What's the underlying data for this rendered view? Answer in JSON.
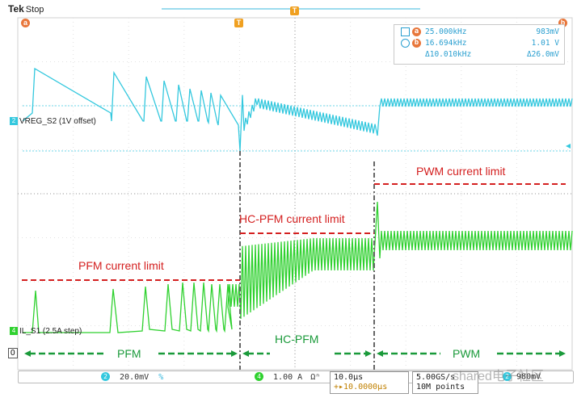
{
  "header": {
    "brand": "Tek",
    "state": "Stop",
    "cursor_a": "a",
    "cursor_b": "b",
    "trigger_marker": "T"
  },
  "readout": {
    "row_a": {
      "badge": "a",
      "freq": "25.000kHz",
      "volt": "983mV"
    },
    "row_b": {
      "badge": "b",
      "freq": "16.694kHz",
      "volt": "1.01 V"
    },
    "row_delta": {
      "freq": "Δ10.010kHz",
      "volt": "Δ26.0mV"
    }
  },
  "channels": {
    "ch2": {
      "number": "2",
      "label": "VREG_S2 (1V offset)",
      "color": "#3ccce0"
    },
    "ch4": {
      "number": "4",
      "label": "IL_S1 (2.5A step)",
      "color": "#3ad63a"
    },
    "zero_marker": "0"
  },
  "annotations": {
    "pfm_limit": "PFM current limit",
    "hcpfm_limit": "HC-PFM current limit",
    "pwm_limit": "PWM current limit",
    "pfm_region": "PFM",
    "hcpfm_region": "HC-PFM",
    "pwm_region": "PWM",
    "red_color": "#d42020",
    "green_color": "#1a9a3a"
  },
  "bottom": {
    "ch2_scale": "20.0mV",
    "ch2_unit_marker": "%",
    "ch4_scale": "1.00 A",
    "ch4_unit_marker": "Ωⁿ",
    "timebase": "10.0µs",
    "trigger_pos": "+▸10.0000µs",
    "sample_rate": "5.00GS/s",
    "record": "10M points",
    "trigger_level": "980mV",
    "watermark": "shared电子社区"
  }
}
